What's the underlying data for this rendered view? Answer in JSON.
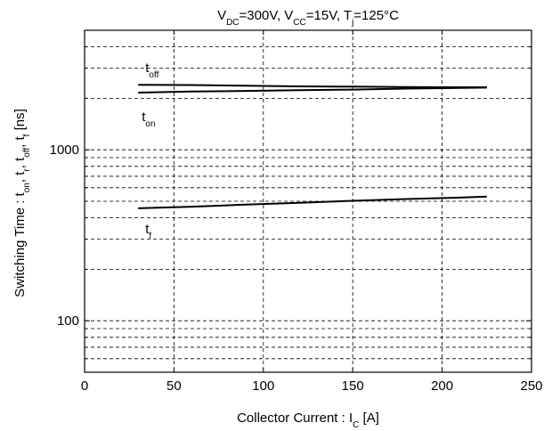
{
  "chart_data": {
    "type": "line",
    "title": {
      "parts": [
        {
          "t": "V"
        },
        {
          "t": "DC",
          "sub": true
        },
        {
          "t": "=300V, V"
        },
        {
          "t": "CC",
          "sub": true
        },
        {
          "t": "=15V, T"
        },
        {
          "t": "j",
          "sub": true
        },
        {
          "t": "=125°C"
        }
      ]
    },
    "xlabel": {
      "parts": [
        {
          "t": "Collector Current  :  I"
        },
        {
          "t": "C",
          "sub": true
        },
        {
          "t": "  [A]"
        }
      ]
    },
    "ylabel": {
      "parts": [
        {
          "t": "Switching Time : t"
        },
        {
          "t": "on",
          "sub": true
        },
        {
          "t": ", t"
        },
        {
          "t": "r",
          "sub": true
        },
        {
          "t": ", t"
        },
        {
          "t": "off",
          "sub": true
        },
        {
          "t": ", t"
        },
        {
          "t": "f",
          "sub": true
        },
        {
          "t": " [ns]"
        }
      ]
    },
    "xlim": [
      0,
      250
    ],
    "ylim": [
      50,
      5000
    ],
    "yscale": "log",
    "grid": true,
    "x_ticks": [
      0,
      50,
      100,
      150,
      200,
      250
    ],
    "x_tick_labels": [
      "0",
      "50",
      "100",
      "150",
      "200",
      "250"
    ],
    "y_major_ticks": [
      100,
      1000
    ],
    "y_tick_labels": [
      "100",
      "1000"
    ],
    "y_minor_ticks": [
      60,
      70,
      80,
      90,
      200,
      300,
      400,
      500,
      600,
      700,
      800,
      900,
      2000,
      3000,
      4000
    ],
    "series": [
      {
        "name": "t_off",
        "label_parts": [
          {
            "t": "t"
          },
          {
            "t": "off",
            "sub": true
          }
        ],
        "x": [
          30,
          60,
          90,
          120,
          150,
          180,
          210,
          225
        ],
        "y": [
          2400,
          2390,
          2370,
          2350,
          2340,
          2330,
          2320,
          2320
        ]
      },
      {
        "name": "t_on",
        "label_parts": [
          {
            "t": "t"
          },
          {
            "t": "on",
            "sub": true
          }
        ],
        "x": [
          30,
          60,
          90,
          120,
          150,
          180,
          210,
          225
        ],
        "y": [
          2160,
          2190,
          2210,
          2230,
          2250,
          2280,
          2300,
          2310
        ]
      },
      {
        "name": "t_f",
        "label_parts": [
          {
            "t": "t"
          },
          {
            "t": "f",
            "sub": true
          }
        ],
        "x": [
          30,
          60,
          90,
          120,
          150,
          180,
          210,
          225
        ],
        "y": [
          455,
          465,
          478,
          490,
          503,
          515,
          525,
          532
        ]
      }
    ]
  }
}
